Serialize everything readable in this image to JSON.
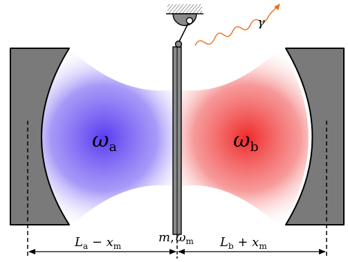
{
  "colors": {
    "mode_a": "#5a3cf0",
    "mode_b": "#ef2a2a",
    "mirror_fill": "#7a7a7a",
    "photon": "#f06a10"
  },
  "labels": {
    "omega_a": {
      "symbol": "ω",
      "sub": "a"
    },
    "omega_b": {
      "symbol": "ω",
      "sub": "b"
    },
    "photon": {
      "symbol": "γ"
    },
    "membrane": {
      "mass": "m",
      "sep": ",",
      "omega": "ω",
      "omega_sub": "m"
    },
    "length_a": {
      "L": "L",
      "L_sub": "a",
      "op": " − ",
      "x": "x",
      "x_sub": "m"
    },
    "length_b": {
      "L": "L",
      "L_sub": "b",
      "op": " + ",
      "x": "x",
      "x_sub": "m"
    }
  }
}
